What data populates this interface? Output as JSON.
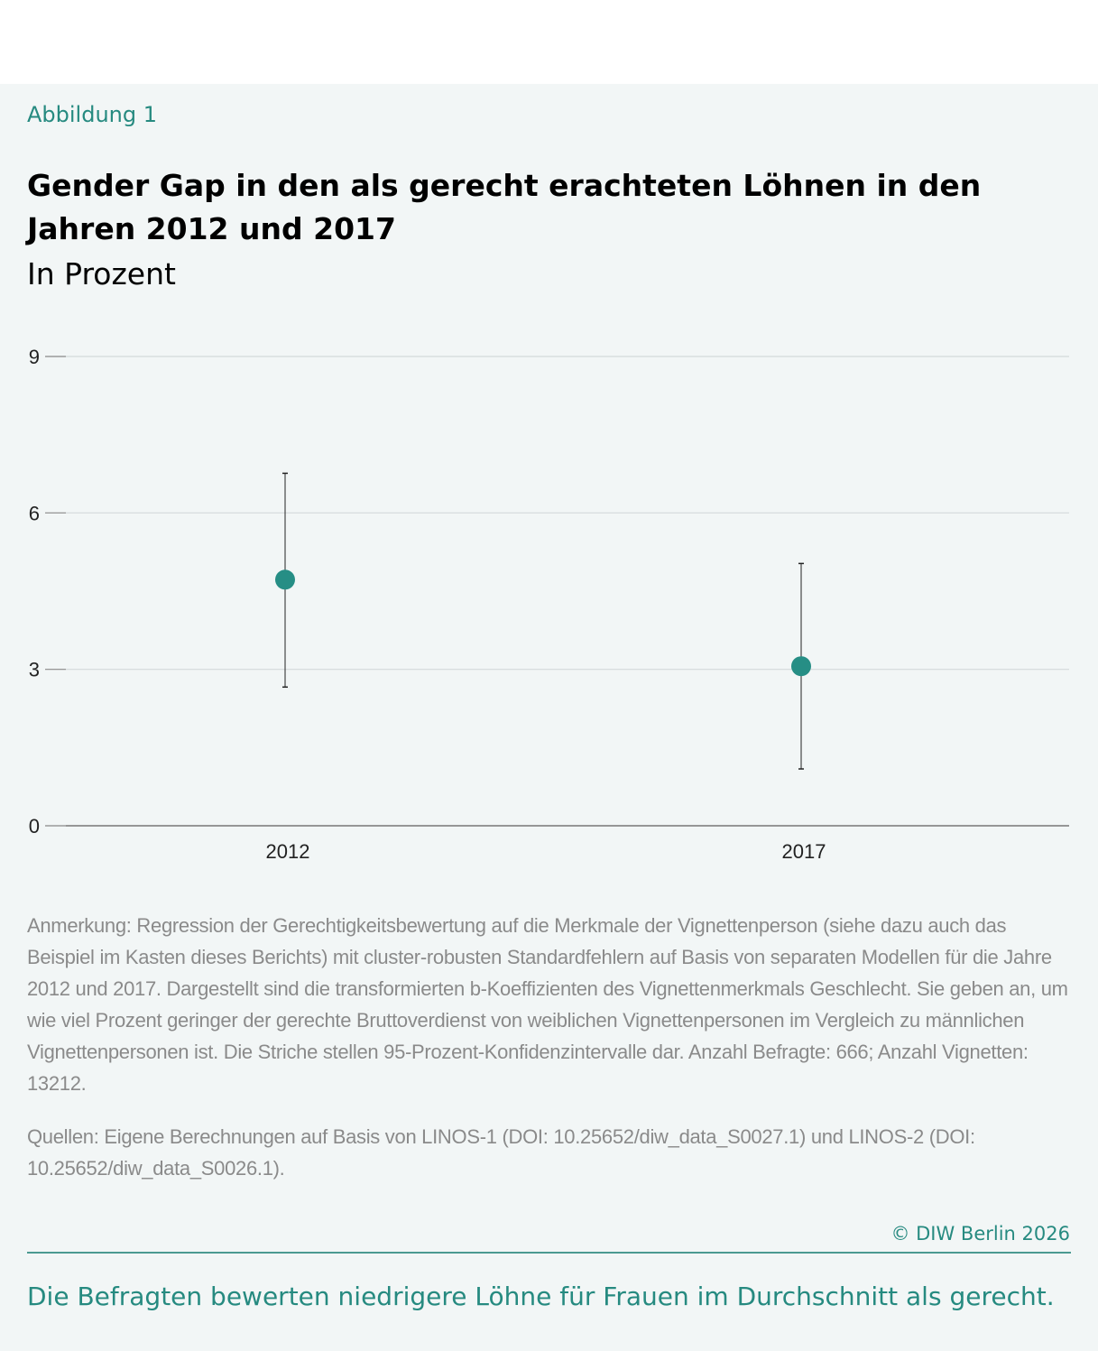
{
  "figure_label": "Abbildung 1",
  "title": "Gender Gap in den als gerecht erachteten Löhnen in den Jahren 2012 und 2017",
  "subtitle": "In Prozent",
  "chart_data": {
    "type": "scatter",
    "categories": [
      "2012",
      "2017"
    ],
    "values": [
      4.72,
      3.06
    ],
    "ci_lower": [
      2.66,
      1.09
    ],
    "ci_upper": [
      6.76,
      5.03
    ],
    "ylim": [
      0,
      9
    ],
    "yticks": [
      "0",
      "3",
      "6",
      "9"
    ],
    "grid": true,
    "color": "#268e85"
  },
  "note": "Anmerkung: Regression der Gerechtigkeitsbewertung auf die Merkmale der Vignettenperson (siehe dazu auch das Beispiel im Kasten dieses Berichts) mit cluster-robusten Standardfehlern auf Basis von separaten Modellen für die Jahre 2012 und 2017. Dargestellt sind die transformierten b-Koeffizienten des Vignettenmerkmals Geschlecht. Sie geben an, um wie viel Prozent geringer der gerechte Bruttoverdienst von weiblichen Vignettenpersonen im Vergleich zu männlichen Vignettenpersonen ist. Die Striche stellen 95-Prozent-Konfidenzintervalle dar. Anzahl Befragte: 666; Anzahl Vignetten: 13212.",
  "sources": "Quellen: Eigene Berechnungen auf Basis von LINOS-1 (DOI: 10.25652/diw_data_S0027.1) und LINOS-2 (DOI: 10.25652/diw_data_S0026.1).",
  "copyright": "© DIW Berlin 2026",
  "takeaway": "Die Befragten bewerten niedrigere Löhne für Frauen im Durchschnitt als gerecht."
}
